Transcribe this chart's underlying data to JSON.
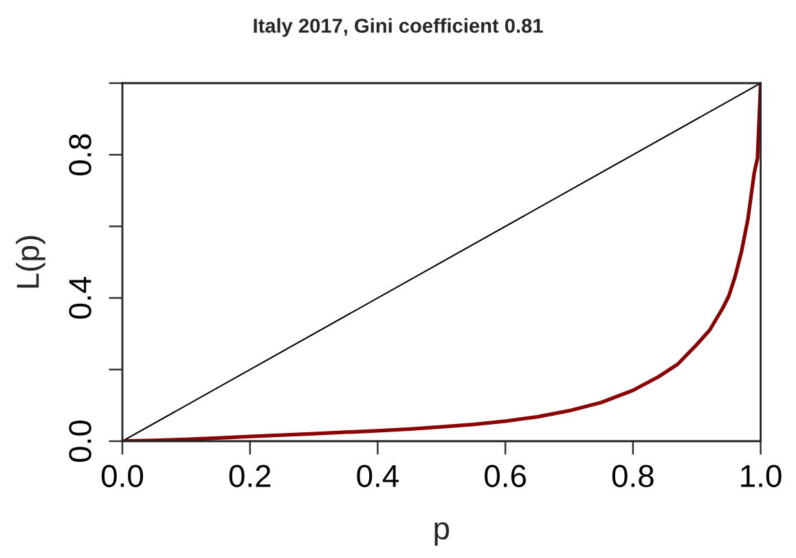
{
  "chart_data": {
    "type": "line",
    "title": "Italy 2017, Gini coefficient 0.81",
    "xlabel": "p",
    "ylabel": "L(p)",
    "series": [
      {
        "color": "#000000",
        "x": [
          0,
          1
        ],
        "values": [
          0,
          1
        ]
      },
      {
        "color": "#8b0000",
        "x": [
          0,
          0.05,
          0.1,
          0.15,
          0.2,
          0.25,
          0.3,
          0.35,
          0.4,
          0.45,
          0.5,
          0.55,
          0.6,
          0.65,
          0.7,
          0.75,
          0.8,
          0.84,
          0.87,
          0.9,
          0.92,
          0.94,
          0.95,
          0.96,
          0.97,
          0.98,
          0.99,
          0.995,
          1.0
        ],
        "values": [
          0,
          0.002,
          0.005,
          0.009,
          0.013,
          0.017,
          0.021,
          0.025,
          0.029,
          0.034,
          0.04,
          0.047,
          0.056,
          0.068,
          0.085,
          0.108,
          0.142,
          0.18,
          0.215,
          0.27,
          0.31,
          0.37,
          0.405,
          0.46,
          0.53,
          0.62,
          0.75,
          0.79,
          1.0
        ]
      }
    ],
    "xlim": [
      0,
      1
    ],
    "ylim": [
      0,
      1
    ],
    "xticks": [
      {
        "value": 0,
        "label": "0.0"
      },
      0.2,
      0.4,
      0.6,
      0.8,
      {
        "value": 1,
        "label": "1.0"
      }
    ],
    "yticks": [
      {
        "value": 0,
        "label": "0.0"
      },
      {
        "value": 0.2,
        "label": null
      },
      0.4,
      {
        "value": 0.6,
        "label": null
      },
      0.8,
      {
        "value": 1,
        "label": null
      }
    ],
    "grid": false
  }
}
